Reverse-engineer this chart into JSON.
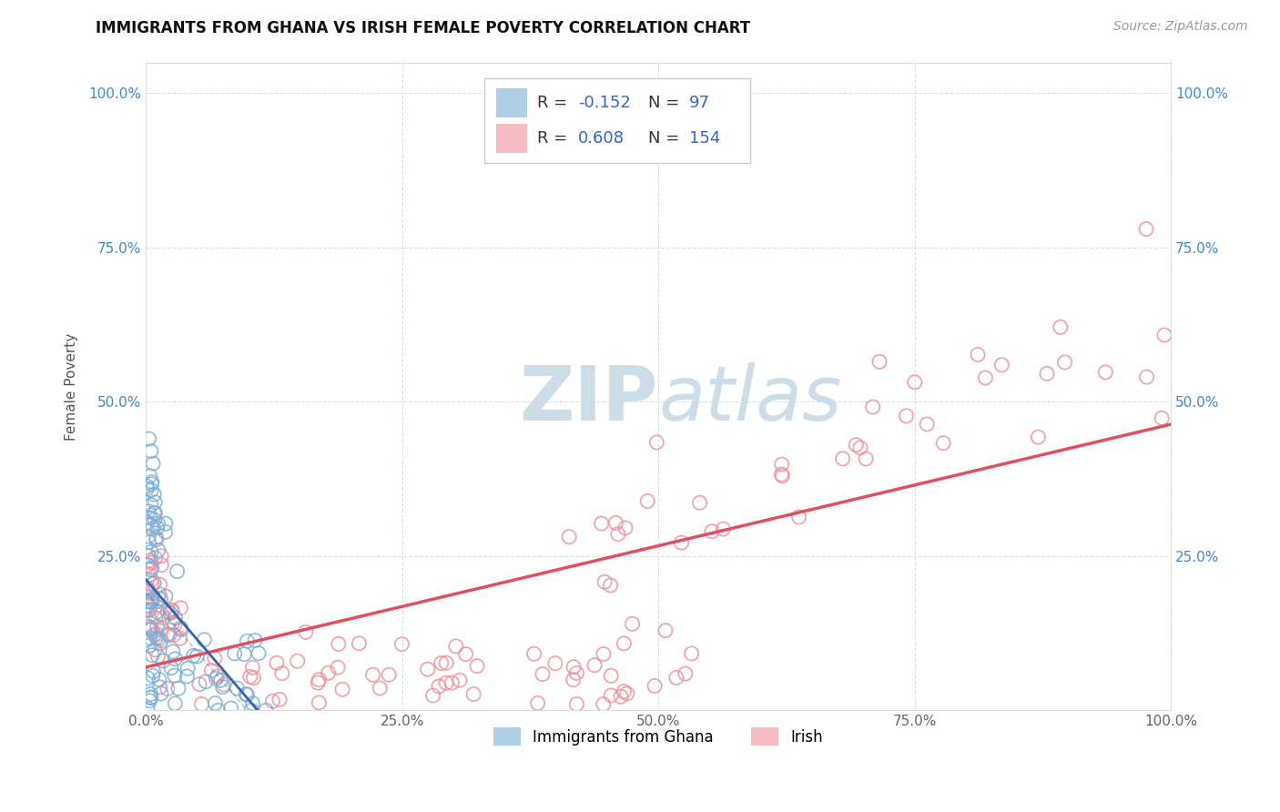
{
  "title": "IMMIGRANTS FROM GHANA VS IRISH FEMALE POVERTY CORRELATION CHART",
  "source": "Source: ZipAtlas.com",
  "ylabel": "Female Poverty",
  "xlim": [
    0.0,
    1.0
  ],
  "ylim": [
    0.0,
    1.05
  ],
  "xtick_vals": [
    0.0,
    0.25,
    0.5,
    0.75,
    1.0
  ],
  "ytick_vals": [
    0.0,
    0.25,
    0.5,
    0.75,
    1.0
  ],
  "xtick_labels": [
    "0.0%",
    "25.0%",
    "50.0%",
    "75.0%",
    "100.0%"
  ],
  "ytick_labels": [
    "",
    "25.0%",
    "50.0%",
    "75.0%",
    "100.0%"
  ],
  "ghana_color": "#7ab0d8",
  "irish_color": "#f0909c",
  "ghana_line_color": "#3366aa",
  "irish_line_color": "#e05060",
  "ghana_R": -0.152,
  "ghana_N": 97,
  "irish_R": 0.608,
  "irish_N": 154,
  "legend_label_ghana": "Immigrants from Ghana",
  "legend_label_irish": "Irish",
  "stat_color": "#3366cc",
  "watermark_color": "#ccdde8",
  "title_color": "#111111",
  "source_color": "#999999",
  "ylabel_color": "#555555",
  "tick_color_x": "#666666",
  "tick_color_y": "#4488cc",
  "grid_color": "#ccddee",
  "legend_edge_color": "#cccccc"
}
